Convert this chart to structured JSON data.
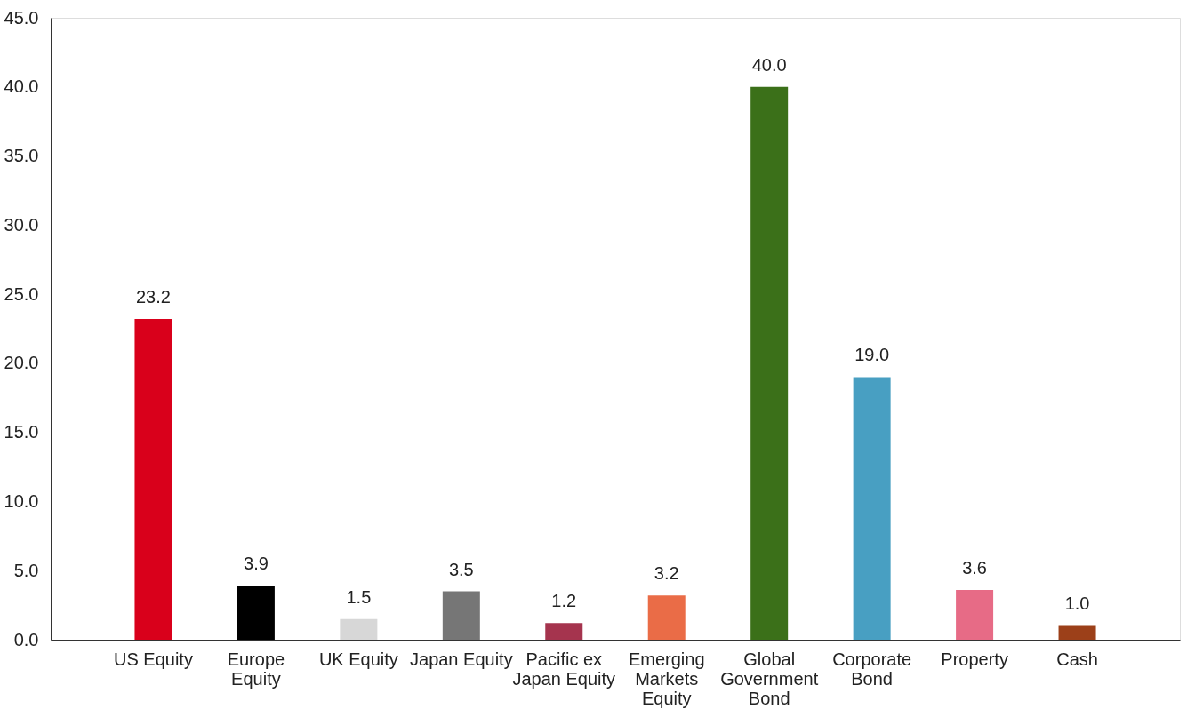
{
  "chart_data": {
    "type": "bar",
    "categories": [
      "US Equity",
      "Europe Equity",
      "UK Equity",
      "Japan Equity",
      "Pacific ex Japan Equity",
      "Emerging Markets Equity",
      "Global Government Bond",
      "Corporate Bond",
      "Property",
      "Cash"
    ],
    "values": [
      23.2,
      3.9,
      1.5,
      3.5,
      1.2,
      3.2,
      40.0,
      19.0,
      3.6,
      1.0
    ],
    "colors": [
      "#d9001b",
      "#000000",
      "#d7d7d7",
      "#767676",
      "#a5344e",
      "#ea6c47",
      "#3b7019",
      "#489fc2",
      "#e76b86",
      "#9c4019"
    ],
    "ylim": [
      0,
      45
    ],
    "yticks": [
      {
        "value": 0,
        "label": "0.0"
      },
      {
        "value": 5,
        "label": "5.0"
      },
      {
        "value": 10,
        "label": "10.0"
      },
      {
        "value": 15,
        "label": "15.0"
      },
      {
        "value": 20,
        "label": "20.0"
      },
      {
        "value": 25,
        "label": "25.0"
      },
      {
        "value": 30,
        "label": "30.0"
      },
      {
        "value": 35,
        "label": "35.0"
      },
      {
        "value": 40,
        "label": "40.0"
      },
      {
        "value": 45,
        "label": "45.0"
      }
    ],
    "value_labels": [
      "23.2",
      "3.9",
      "1.5",
      "3.5",
      "1.2",
      "3.2",
      "40.0",
      "19.0",
      "3.6",
      "1.0"
    ],
    "grid": false
  }
}
